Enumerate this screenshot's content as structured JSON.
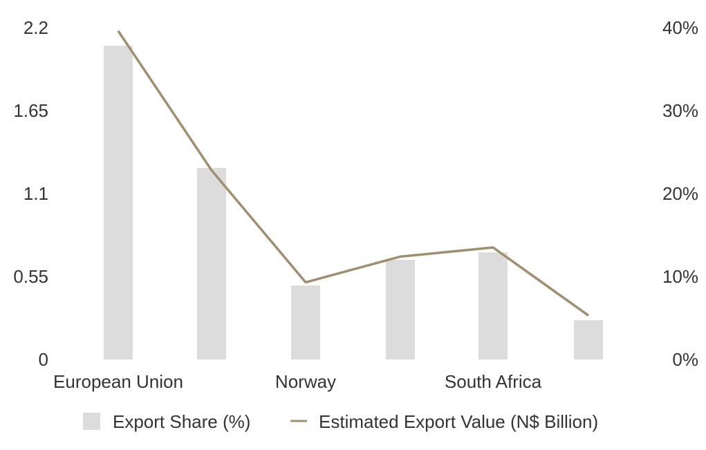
{
  "chart_data": {
    "type": "bar",
    "categories": [
      "European Union",
      "",
      "Norway",
      "",
      "South Africa",
      ""
    ],
    "series": [
      {
        "name": "Export Share (%)",
        "type": "bar",
        "axis": "left",
        "values": [
          2.08,
          1.27,
          0.49,
          0.66,
          0.71,
          0.26
        ]
      },
      {
        "name": "Estimated Export Value (N$ Billion)",
        "type": "line",
        "axis": "right",
        "values": [
          39.6,
          22.8,
          9.3,
          12.4,
          13.5,
          5.3
        ]
      }
    ],
    "y_left": {
      "min": 0,
      "max": 2.2,
      "ticks": [
        "0",
        "0.55",
        "1.1",
        "1.65",
        "2.2"
      ]
    },
    "y_right": {
      "min": 0,
      "max": 40,
      "ticks": [
        "0%",
        "10%",
        "20%",
        "30%",
        "40%"
      ]
    },
    "grid": false,
    "legend_position": "bottom",
    "colors": {
      "bar": "#dcdcdc",
      "line": "#a08e70",
      "text": "#333333"
    }
  }
}
